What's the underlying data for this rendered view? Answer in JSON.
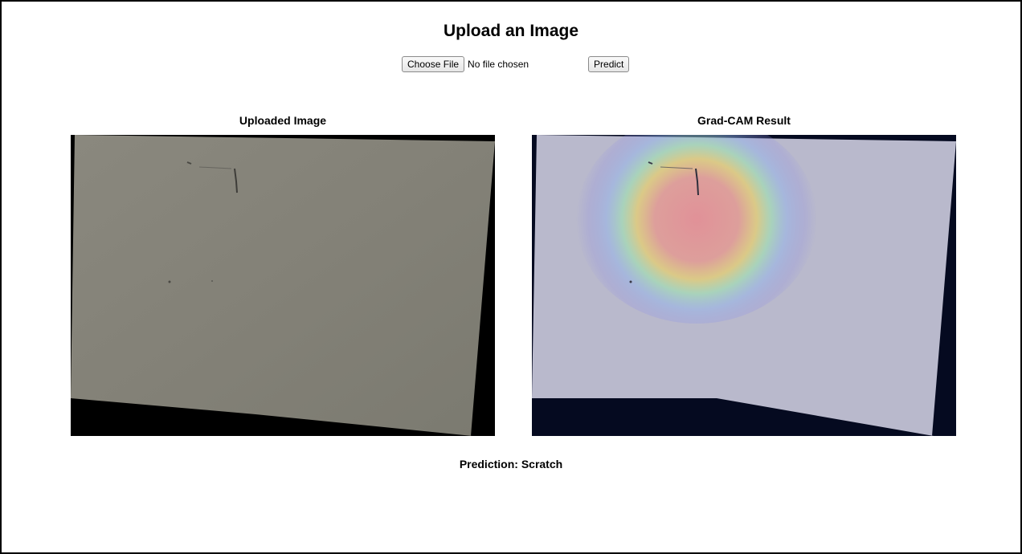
{
  "page": {
    "title": "Upload an Image"
  },
  "upload": {
    "choose_file_label": "Choose File",
    "file_status": "No file chosen",
    "predict_label": "Predict"
  },
  "panels": {
    "uploaded_title": "Uploaded Image",
    "gradcam_title": "Grad-CAM Result"
  },
  "result": {
    "prediction_text": "Prediction: Scratch"
  },
  "colors": {
    "uploaded_surface": "#848277",
    "gradcam_surface": "#b9b9cc",
    "gradcam_background": "#050a20"
  }
}
